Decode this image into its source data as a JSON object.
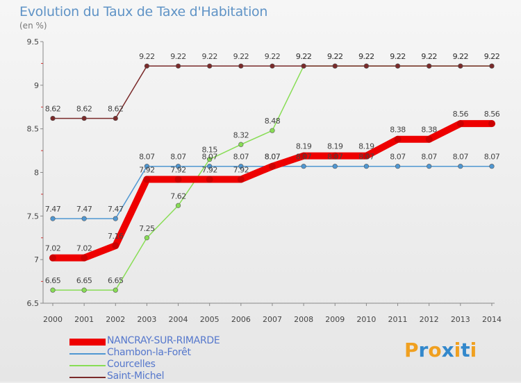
{
  "title": "Evolution du Taux de Taxe d'Habitation",
  "unit": "(en %)",
  "logo": {
    "text": "Proxiti",
    "colors": [
      "#f0a020",
      "#3388cc",
      "#f0a020",
      "#3388cc",
      "#f0a020",
      "#3388cc",
      "#f0a020"
    ]
  },
  "chart_data": {
    "type": "line",
    "categories": [
      "2000",
      "2001",
      "2002",
      "2003",
      "2004",
      "2005",
      "2006",
      "2007",
      "2008",
      "2009",
      "2010",
      "2011",
      "2012",
      "2013",
      "2014"
    ],
    "ylim": [
      6.5,
      9.5
    ],
    "yticks": [
      6.5,
      7,
      7.5,
      8,
      8.5,
      9,
      9.5
    ],
    "ytick_labels": [
      "6.5",
      "7",
      "7.5",
      "8",
      "8.5",
      "9",
      "9.5"
    ],
    "grid": false,
    "legend_position": "bottom-left",
    "series": [
      {
        "name": "NANCRAY-SUR-RIMARDE",
        "color": "#ee0000",
        "values": [
          7.02,
          7.02,
          7.16,
          7.92,
          7.92,
          7.92,
          7.92,
          8.07,
          8.19,
          8.19,
          8.19,
          8.38,
          8.38,
          8.56,
          8.56
        ],
        "labels": [
          "7.02",
          "7.02",
          "7.16",
          "7.92",
          "7.92",
          "7.92",
          "7.92",
          "8.07",
          "8.19",
          "8.19",
          "8.19",
          "8.38",
          "8.38",
          "8.56",
          "8.56"
        ]
      },
      {
        "name": "Chambon-la-Forêt",
        "color": "#4f97d2",
        "values": [
          7.47,
          7.47,
          7.47,
          8.07,
          8.07,
          8.07,
          8.07,
          8.07,
          8.07,
          8.07,
          8.07,
          8.07,
          8.07,
          8.07,
          8.07
        ],
        "labels": [
          "7.47",
          "7.47",
          "7.47",
          "8.07",
          "8.07",
          "8.07",
          "8.07",
          "8.07",
          "8.07",
          "8.07",
          "8.07",
          "8.07",
          "8.07",
          "8.07",
          "8.07"
        ]
      },
      {
        "name": "Courcelles",
        "color": "#88dd55",
        "values": [
          6.65,
          6.65,
          6.65,
          7.25,
          7.62,
          8.15,
          8.32,
          8.48,
          9.22,
          9.22,
          9.22,
          9.22,
          9.22,
          9.22,
          9.22
        ],
        "labels": [
          "6.65",
          "6.65",
          "6.65",
          "7.25",
          "7.62",
          "8.15",
          "8.32",
          "8.48",
          "9.22",
          "9.22",
          "9.22",
          "9.22",
          "9.22",
          "9.22",
          "9.22"
        ]
      },
      {
        "name": "Saint-Michel",
        "color": "#7a2a2a",
        "values": [
          8.62,
          8.62,
          8.62,
          9.22,
          9.22,
          9.22,
          9.22,
          9.22,
          9.22,
          9.22,
          9.22,
          9.22,
          9.22,
          9.22,
          9.22
        ],
        "labels": [
          "8.62",
          "8.62",
          "8.62",
          "9.22",
          "9.22",
          "9.22",
          "9.22",
          "9.22",
          "9.22",
          "9.22",
          "9.22",
          "9.22",
          "9.22",
          "9.22",
          "9.22"
        ]
      }
    ]
  }
}
